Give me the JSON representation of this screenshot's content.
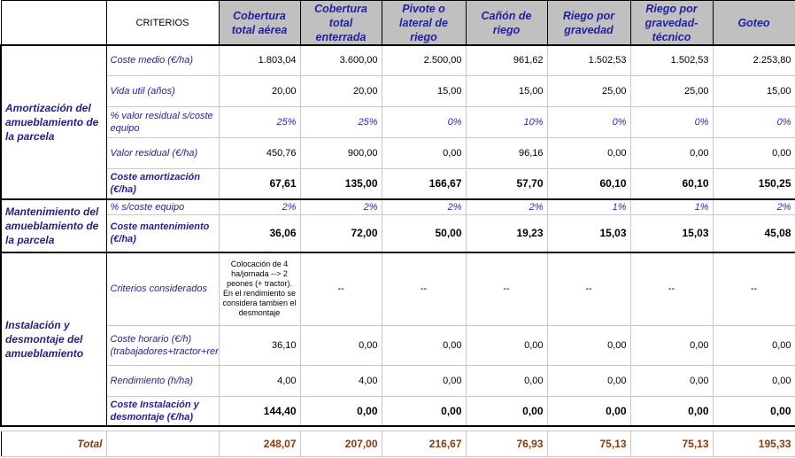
{
  "header": {
    "criterios_label": "CRITERIOS",
    "systems": [
      "Cobertura total aérea",
      "Cobertura total enterrada",
      "Pivote o lateral de riego",
      "Cañón de riego",
      "Riego por gravedad",
      "Riego por gravedad-técnico",
      "Goteo"
    ]
  },
  "sections": [
    {
      "title": "Amortización del amueblamiento de la parcela",
      "rows": [
        {
          "label": "Coste medio (€/ha)",
          "values": [
            "1.803,04",
            "3.600,00",
            "2.500,00",
            "961,62",
            "1.502,53",
            "1.502,53",
            "2.253,80"
          ]
        },
        {
          "label": "Vida util (años)",
          "values": [
            "20,00",
            "20,00",
            "15,00",
            "15,00",
            "25,00",
            "25,00",
            "15,00"
          ]
        },
        {
          "label": "% valor residual s/coste equipo",
          "values": [
            "25%",
            "25%",
            "0%",
            "10%",
            "0%",
            "0%",
            "0%"
          ]
        },
        {
          "label": "Valor residual (€/ha)",
          "values": [
            "450,76",
            "900,00",
            "0,00",
            "96,16",
            "0,00",
            "0,00",
            "0,00"
          ]
        },
        {
          "label": "Coste amortización (€/ha)",
          "values": [
            "67,61",
            "135,00",
            "166,67",
            "57,70",
            "60,10",
            "60,10",
            "150,25"
          ]
        }
      ]
    },
    {
      "title": "Mantenimiento del amueblamiento de la parcela",
      "rows": [
        {
          "label": "% s/coste equipo",
          "values": [
            "2%",
            "2%",
            "2%",
            "2%",
            "1%",
            "1%",
            "2%"
          ]
        },
        {
          "label": "Coste mantenimiento (€/ha)",
          "values": [
            "36,06",
            "72,00",
            "50,00",
            "19,23",
            "15,03",
            "15,03",
            "45,08"
          ]
        }
      ]
    },
    {
      "title": "Instalación y desmontaje del amueblamiento",
      "rows": [
        {
          "label": "Criterios considerados",
          "values": [
            "Colocación de 4 ha/jornada --> 2 peones (+ tractor). En el rendimiento se considera tambien el desmontaje",
            "--",
            "--",
            "--",
            "--",
            "--",
            "--"
          ]
        },
        {
          "label": "Coste horario (€/h) (trabajadores+tractor+remolque)",
          "values": [
            "36,10",
            "0,00",
            "0,00",
            "0,00",
            "0,00",
            "0,00",
            "0,00"
          ]
        },
        {
          "label": "Rendimiento (h/ha)",
          "values": [
            "4,00",
            "4,00",
            "0,00",
            "0,00",
            "0,00",
            "0,00",
            "0,00"
          ]
        },
        {
          "label": "Coste Instalación y desmontaje (€/ha)",
          "values": [
            "144,40",
            "0,00",
            "0,00",
            "0,00",
            "0,00",
            "0,00",
            "0,00"
          ]
        }
      ]
    }
  ],
  "total": {
    "label": "Total",
    "values": [
      "248,07",
      "207,00",
      "216,67",
      "76,93",
      "75,13",
      "75,13",
      "195,33"
    ]
  }
}
